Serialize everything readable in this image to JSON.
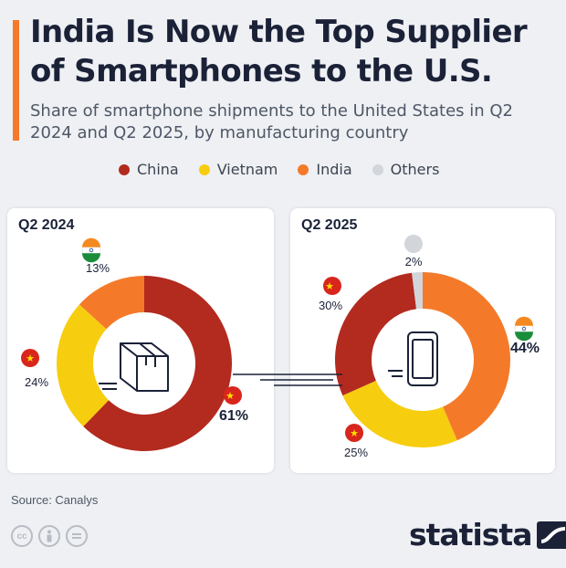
{
  "header": {
    "title": "India Is Now the Top Supplier of Smartphones to the U.S.",
    "subtitle": "Share of smartphone shipments to the United States in Q2 2024 and Q2 2025, by manufacturing country"
  },
  "legend": [
    {
      "label": "China",
      "color": "#b32a1f"
    },
    {
      "label": "Vietnam",
      "color": "#f7cd0f"
    },
    {
      "label": "India",
      "color": "#f47a2a"
    },
    {
      "label": "Others",
      "color": "#d2d5da"
    }
  ],
  "chart_data": [
    {
      "type": "pie",
      "title": "Q2 2024",
      "categories": [
        "China",
        "Vietnam",
        "India"
      ],
      "values": [
        61,
        24,
        13
      ],
      "value_labels": [
        "61%",
        "24%",
        "13%"
      ],
      "colors": [
        "#b32a1f",
        "#f7cd0f",
        "#f47a2a"
      ],
      "center_icon": "box-icon"
    },
    {
      "type": "pie",
      "title": "Q2 2025",
      "categories": [
        "India",
        "Vietnam",
        "China",
        "Others"
      ],
      "values": [
        44,
        25,
        30,
        2
      ],
      "value_labels": [
        "44%",
        "25%",
        "30%",
        "2%"
      ],
      "colors": [
        "#f47a2a",
        "#f7cd0f",
        "#b32a1f",
        "#d2d5da"
      ],
      "center_icon": "smartphone-icon"
    }
  ],
  "footer": {
    "source": "Source: Canalys",
    "brand": "statista",
    "license_icons": [
      "cc-icon",
      "attribution-icon",
      "no-derivatives-icon"
    ]
  }
}
